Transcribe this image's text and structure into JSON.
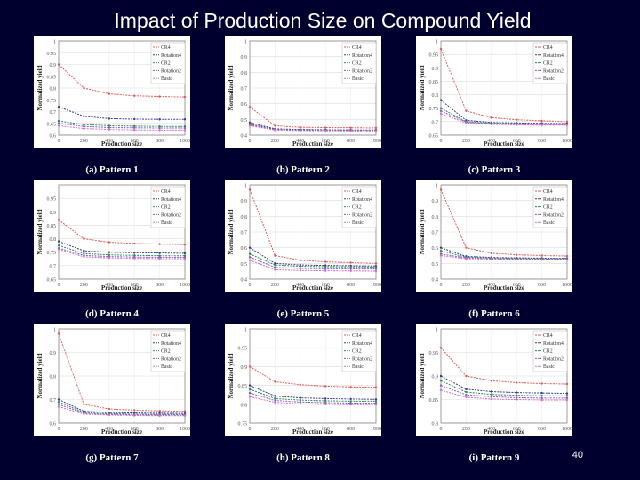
{
  "slide": {
    "title": "Impact of Production Size on Compound Yield",
    "page_number": "40"
  },
  "colors": {
    "CR4": "#e05a5a",
    "Rotation4": "#3a3a8c",
    "CR2": "#2e8b57",
    "Rotation2": "#8a5ac8",
    "Basic": "#d070c8"
  },
  "chart_data": [
    {
      "type": "line",
      "caption": "(a) Pattern 1",
      "xlabel": "Production size",
      "ylabel": "Normalized yield",
      "xlim": [
        0,
        1000
      ],
      "ylim": [
        0.6,
        1
      ],
      "x_ticks": [
        "0",
        "200",
        "400",
        "600",
        "800",
        "1000"
      ],
      "y_ticks": [
        "1",
        "0.95",
        "0.9",
        "0.85",
        "0.8",
        "0.75",
        "0.7",
        "0.65",
        "0.6"
      ],
      "legend": [
        "CR4",
        "Rotation4",
        "CR2",
        "Rotation2",
        "Basic"
      ],
      "legend_position": "top-right",
      "series": [
        {
          "name": "CR4",
          "values": [
            0.9,
            0.8,
            0.775,
            0.767,
            0.764,
            0.762
          ]
        },
        {
          "name": "Rotation4",
          "values": [
            0.72,
            0.68,
            0.67,
            0.668,
            0.667,
            0.667
          ]
        },
        {
          "name": "CR2",
          "values": [
            0.66,
            0.645,
            0.64,
            0.638,
            0.637,
            0.637
          ]
        },
        {
          "name": "Rotation2",
          "values": [
            0.65,
            0.637,
            0.632,
            0.631,
            0.63,
            0.63
          ]
        },
        {
          "name": "Basic",
          "values": [
            0.64,
            0.628,
            0.624,
            0.622,
            0.621,
            0.621
          ]
        }
      ]
    },
    {
      "type": "line",
      "caption": "(b) Pattern 2",
      "xlabel": "Production size",
      "ylabel": "Normalized yield",
      "xlim": [
        0,
        1000
      ],
      "ylim": [
        0.4,
        1
      ],
      "x_ticks": [
        "0",
        "200",
        "400",
        "600",
        "800",
        "1000"
      ],
      "y_ticks": [
        "1",
        "0.9",
        "0.8",
        "0.7",
        "0.6",
        "0.5",
        "0.4"
      ],
      "legend": [
        "CR4",
        "Rotation4",
        "CR2",
        "Rotation2",
        "Basic"
      ],
      "legend_position": "top-right",
      "series": [
        {
          "name": "CR4",
          "values": [
            0.58,
            0.46,
            0.45,
            0.448,
            0.447,
            0.446
          ]
        },
        {
          "name": "Rotation4",
          "values": [
            0.48,
            0.44,
            0.436,
            0.434,
            0.433,
            0.433
          ]
        },
        {
          "name": "CR2",
          "values": [
            0.47,
            0.437,
            0.433,
            0.431,
            0.43,
            0.43
          ]
        },
        {
          "name": "Rotation2",
          "values": [
            0.465,
            0.435,
            0.431,
            0.43,
            0.429,
            0.429
          ]
        },
        {
          "name": "Basic",
          "values": [
            0.46,
            0.432,
            0.429,
            0.428,
            0.427,
            0.427
          ]
        }
      ]
    },
    {
      "type": "line",
      "caption": "(c) Pattern 3",
      "xlabel": "Production size",
      "ylabel": "Normalized yield",
      "xlim": [
        0,
        1000
      ],
      "ylim": [
        0.65,
        1
      ],
      "x_ticks": [
        "0",
        "200",
        "400",
        "600",
        "800",
        "1000"
      ],
      "y_ticks": [
        "1",
        "0.95",
        "0.9",
        "0.85",
        "0.8",
        "0.75",
        "0.7",
        "0.65"
      ],
      "legend": [
        "CR4",
        "Rotation4",
        "CR2",
        "Rotation2",
        "Basic"
      ],
      "legend_position": "top-right",
      "series": [
        {
          "name": "CR4",
          "values": [
            0.97,
            0.74,
            0.715,
            0.707,
            0.703,
            0.7
          ]
        },
        {
          "name": "Rotation4",
          "values": [
            0.78,
            0.705,
            0.697,
            0.695,
            0.694,
            0.693
          ]
        },
        {
          "name": "CR2",
          "values": [
            0.75,
            0.7,
            0.694,
            0.692,
            0.691,
            0.69
          ]
        },
        {
          "name": "Rotation2",
          "values": [
            0.74,
            0.698,
            0.692,
            0.69,
            0.689,
            0.689
          ]
        },
        {
          "name": "Basic",
          "values": [
            0.73,
            0.695,
            0.69,
            0.688,
            0.687,
            0.687
          ]
        }
      ]
    },
    {
      "type": "line",
      "caption": "(d) Pattern 4",
      "xlabel": "Production size",
      "ylabel": "Normalized yield",
      "xlim": [
        0,
        1000
      ],
      "ylim": [
        0.65,
        1
      ],
      "x_ticks": [
        "0",
        "200",
        "400",
        "600",
        "800",
        "1000"
      ],
      "y_ticks": [
        "0.95",
        "0.9",
        "0.85",
        "0.8",
        "0.75",
        "0.7",
        "0.65"
      ],
      "legend": [
        "CR4",
        "Rotation4",
        "CR2",
        "Rotation2",
        "Basic"
      ],
      "legend_position": "top-right",
      "series": [
        {
          "name": "CR4",
          "values": [
            0.87,
            0.8,
            0.787,
            0.782,
            0.78,
            0.778
          ]
        },
        {
          "name": "Rotation4",
          "values": [
            0.79,
            0.755,
            0.75,
            0.748,
            0.747,
            0.746
          ]
        },
        {
          "name": "CR2",
          "values": [
            0.775,
            0.745,
            0.74,
            0.738,
            0.737,
            0.737
          ]
        },
        {
          "name": "Rotation2",
          "values": [
            0.765,
            0.738,
            0.734,
            0.732,
            0.731,
            0.731
          ]
        },
        {
          "name": "Basic",
          "values": [
            0.76,
            0.733,
            0.729,
            0.727,
            0.726,
            0.726
          ]
        }
      ]
    },
    {
      "type": "line",
      "caption": "(e) Pattern 5",
      "xlabel": "Production size",
      "ylabel": "Normalized yield",
      "xlim": [
        0,
        1000
      ],
      "ylim": [
        0.4,
        1
      ],
      "x_ticks": [
        "0",
        "200",
        "400",
        "600",
        "800",
        "1000"
      ],
      "y_ticks": [
        "1",
        "0.9",
        "0.8",
        "0.7",
        "0.6",
        "0.5",
        "0.4"
      ],
      "legend": [
        "CR4",
        "Rotation4",
        "CR2",
        "Rotation2",
        "Basic"
      ],
      "legend_position": "top-right",
      "series": [
        {
          "name": "CR4",
          "values": [
            0.97,
            0.55,
            0.52,
            0.51,
            0.505,
            0.5
          ]
        },
        {
          "name": "Rotation4",
          "values": [
            0.6,
            0.5,
            0.49,
            0.487,
            0.485,
            0.484
          ]
        },
        {
          "name": "CR2",
          "values": [
            0.56,
            0.49,
            0.482,
            0.479,
            0.478,
            0.477
          ]
        },
        {
          "name": "Rotation2",
          "values": [
            0.54,
            0.475,
            0.468,
            0.466,
            0.465,
            0.464
          ]
        },
        {
          "name": "Basic",
          "values": [
            0.52,
            0.46,
            0.455,
            0.453,
            0.452,
            0.451
          ]
        }
      ]
    },
    {
      "type": "line",
      "caption": "(f) Pattern 6",
      "xlabel": "Production size",
      "ylabel": "Normalized yield",
      "xlim": [
        0,
        1000
      ],
      "ylim": [
        0.4,
        1
      ],
      "x_ticks": [
        "0",
        "200",
        "400",
        "600",
        "800",
        "1000"
      ],
      "y_ticks": [
        "1",
        "0.9",
        "0.8",
        "0.7",
        "0.6",
        "0.5",
        "0.4"
      ],
      "legend": [
        "CR4",
        "Rotation4",
        "CR2",
        "Rotation2",
        "Basic"
      ],
      "legend_position": "top-right",
      "series": [
        {
          "name": "CR4",
          "values": [
            0.97,
            0.6,
            0.565,
            0.555,
            0.55,
            0.547
          ]
        },
        {
          "name": "Rotation4",
          "values": [
            0.6,
            0.545,
            0.538,
            0.535,
            0.533,
            0.532
          ]
        },
        {
          "name": "CR2",
          "values": [
            0.58,
            0.54,
            0.534,
            0.532,
            0.53,
            0.53
          ]
        },
        {
          "name": "Rotation2",
          "values": [
            0.56,
            0.535,
            0.53,
            0.528,
            0.527,
            0.527
          ]
        },
        {
          "name": "Basic",
          "values": [
            0.55,
            0.53,
            0.526,
            0.524,
            0.523,
            0.523
          ]
        }
      ]
    },
    {
      "type": "line",
      "caption": "(g) Pattern 7",
      "xlabel": "Production size",
      "ylabel": "Normalized yield",
      "xlim": [
        0,
        1000
      ],
      "ylim": [
        0.6,
        1
      ],
      "x_ticks": [
        "0",
        "200",
        "400",
        "600",
        "800",
        "1000"
      ],
      "y_ticks": [
        "1",
        "0.9",
        "0.8",
        "0.7",
        "0.6"
      ],
      "legend": [
        "CR4",
        "Rotation4",
        "CR2",
        "Rotation2",
        "Basic"
      ],
      "legend_position": "top-right",
      "series": [
        {
          "name": "CR4",
          "values": [
            0.98,
            0.68,
            0.66,
            0.655,
            0.652,
            0.65
          ]
        },
        {
          "name": "Rotation4",
          "values": [
            0.7,
            0.65,
            0.645,
            0.643,
            0.642,
            0.641
          ]
        },
        {
          "name": "CR2",
          "values": [
            0.69,
            0.645,
            0.64,
            0.638,
            0.637,
            0.637
          ]
        },
        {
          "name": "Rotation2",
          "values": [
            0.68,
            0.642,
            0.637,
            0.635,
            0.634,
            0.634
          ]
        },
        {
          "name": "Basic",
          "values": [
            0.67,
            0.638,
            0.634,
            0.632,
            0.631,
            0.631
          ]
        }
      ]
    },
    {
      "type": "line",
      "caption": "(h) Pattern 8",
      "xlabel": "Production size",
      "ylabel": "Normalized yield",
      "xlim": [
        0,
        1000
      ],
      "ylim": [
        0.75,
        1
      ],
      "x_ticks": [
        "0",
        "200",
        "400",
        "600",
        "800",
        "1000"
      ],
      "y_ticks": [
        "1",
        "0.95",
        "0.9",
        "0.85",
        "0.8",
        "0.75"
      ],
      "legend": [
        "CR4",
        "Rotation4",
        "CR2",
        "Rotation2",
        "Basic"
      ],
      "legend_position": "top-right",
      "series": [
        {
          "name": "CR4",
          "values": [
            0.9,
            0.86,
            0.852,
            0.848,
            0.846,
            0.845
          ]
        },
        {
          "name": "Rotation4",
          "values": [
            0.85,
            0.822,
            0.817,
            0.815,
            0.814,
            0.813
          ]
        },
        {
          "name": "CR2",
          "values": [
            0.84,
            0.815,
            0.811,
            0.809,
            0.808,
            0.808
          ]
        },
        {
          "name": "Rotation2",
          "values": [
            0.83,
            0.81,
            0.806,
            0.804,
            0.803,
            0.803
          ]
        },
        {
          "name": "Basic",
          "values": [
            0.82,
            0.805,
            0.801,
            0.8,
            0.799,
            0.799
          ]
        }
      ]
    },
    {
      "type": "line",
      "caption": "(i) Pattern 9",
      "xlabel": "Production size",
      "ylabel": "Normalized yield",
      "xlim": [
        0,
        1000
      ],
      "ylim": [
        0.8,
        1
      ],
      "x_ticks": [
        "0",
        "200",
        "400",
        "600",
        "800",
        "1000"
      ],
      "y_ticks": [
        "1",
        "0.95",
        "0.9",
        "0.85",
        "0.8"
      ],
      "legend": [
        "CR4",
        "Rotation4",
        "CR2",
        "Rotation2",
        "Basic"
      ],
      "legend_position": "top-right",
      "series": [
        {
          "name": "CR4",
          "values": [
            0.96,
            0.9,
            0.89,
            0.886,
            0.884,
            0.883
          ]
        },
        {
          "name": "Rotation4",
          "values": [
            0.9,
            0.872,
            0.867,
            0.865,
            0.864,
            0.863
          ]
        },
        {
          "name": "CR2",
          "values": [
            0.89,
            0.866,
            0.861,
            0.859,
            0.858,
            0.858
          ]
        },
        {
          "name": "Rotation2",
          "values": [
            0.88,
            0.86,
            0.856,
            0.854,
            0.853,
            0.853
          ]
        },
        {
          "name": "Basic",
          "values": [
            0.87,
            0.855,
            0.851,
            0.85,
            0.849,
            0.849
          ]
        }
      ]
    }
  ]
}
